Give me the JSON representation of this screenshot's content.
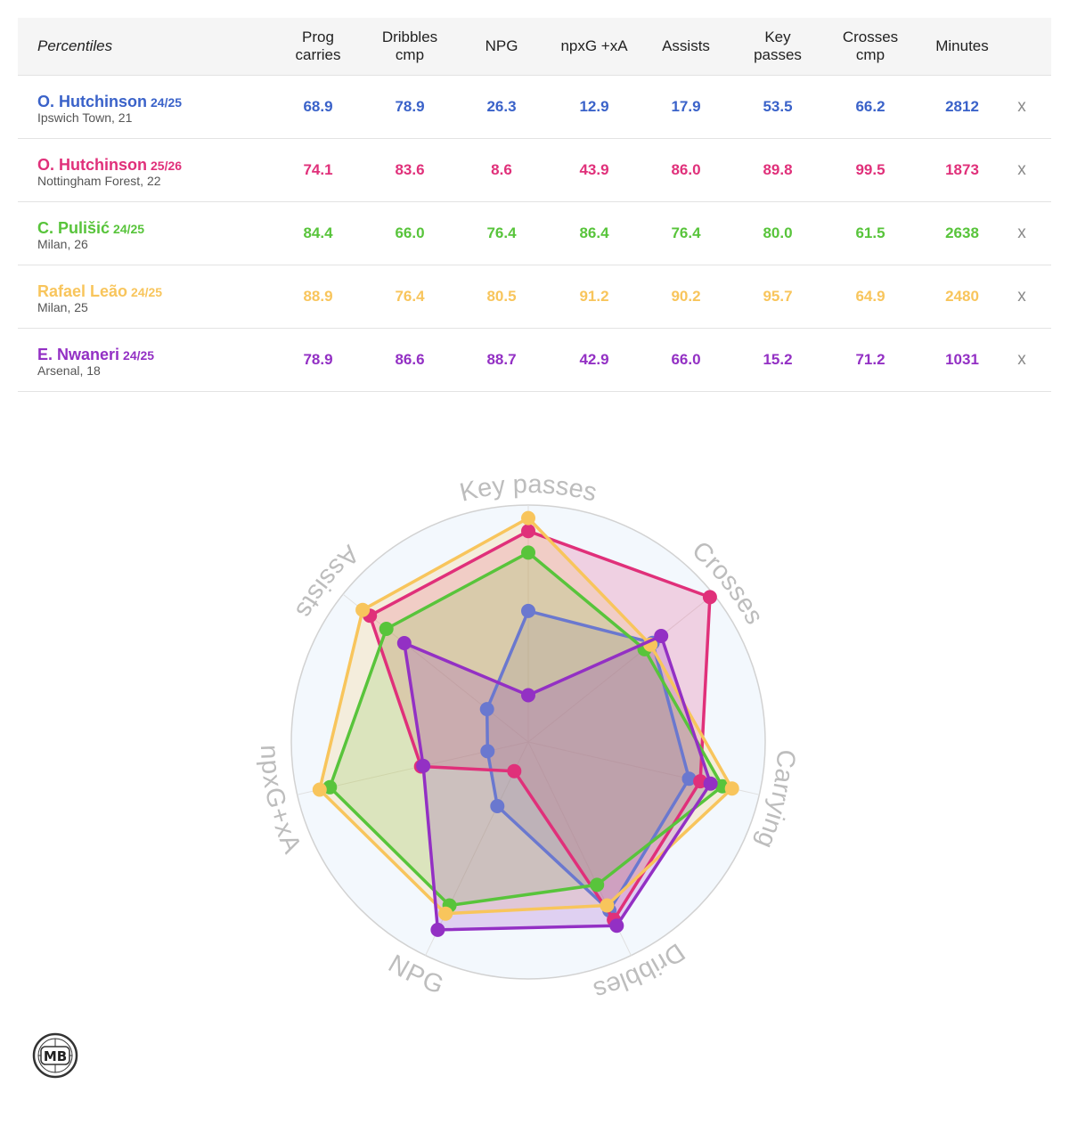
{
  "table": {
    "header_label": "Percentiles",
    "columns": [
      "Prog\ncarries",
      "Dribbles\ncmp",
      "NPG",
      "npxG +xA",
      "Assists",
      "Key\npasses",
      "Crosses\ncmp",
      "Minutes"
    ],
    "remove_label": "x",
    "players": [
      {
        "name": "O. Hutchinson",
        "season": "24/25",
        "sub": "Ipswich Town, 21",
        "color": "#3a62c9",
        "values": [
          "68.9",
          "78.9",
          "26.3",
          "12.9",
          "17.9",
          "53.5",
          "66.2",
          "2812"
        ]
      },
      {
        "name": "O. Hutchinson",
        "season": "25/26",
        "sub": "Nottingham Forest, 22",
        "color": "#e0307a",
        "values": [
          "74.1",
          "83.6",
          "8.6",
          "43.9",
          "86.0",
          "89.8",
          "99.5",
          "1873"
        ]
      },
      {
        "name": "C. Pulišić",
        "season": "24/25",
        "sub": "Milan, 26",
        "color": "#58c43b",
        "values": [
          "84.4",
          "66.0",
          "76.4",
          "86.4",
          "76.4",
          "80.0",
          "61.5",
          "2638"
        ]
      },
      {
        "name": "Rafael Leão",
        "season": "24/25",
        "sub": "Milan, 25",
        "color": "#f8c55c",
        "values": [
          "88.9",
          "76.4",
          "80.5",
          "91.2",
          "90.2",
          "95.7",
          "64.9",
          "2480"
        ]
      },
      {
        "name": "E. Nwaneri",
        "season": "24/25",
        "sub": "Arsenal, 18",
        "color": "#9330c4",
        "values": [
          "78.9",
          "86.6",
          "88.7",
          "42.9",
          "66.0",
          "15.2",
          "71.2",
          "1031"
        ]
      }
    ]
  },
  "chart_data": {
    "type": "radar",
    "axes": [
      "Key passes",
      "Crosses",
      "Carrying",
      "Dribbles",
      "NPG",
      "npxG+xA",
      "Assists"
    ],
    "range": [
      0,
      100
    ],
    "series": [
      {
        "name": "O. Hutchinson 24/25",
        "color": "#6a78cf",
        "values": [
          53.5,
          66.2,
          68.9,
          78.9,
          26.3,
          12.9,
          17.9
        ]
      },
      {
        "name": "O. Hutchinson 25/26",
        "color": "#e0307a",
        "values": [
          89.8,
          99.5,
          74.1,
          83.6,
          8.6,
          43.9,
          86.0
        ]
      },
      {
        "name": "C. Pulišić 24/25",
        "color": "#58c43b",
        "values": [
          80.0,
          61.5,
          84.4,
          66.0,
          76.4,
          86.4,
          76.4
        ]
      },
      {
        "name": "Rafael Leão 24/25",
        "color": "#f8c55c",
        "values": [
          95.7,
          64.9,
          88.9,
          76.4,
          80.5,
          91.2,
          90.2
        ]
      },
      {
        "name": "E. Nwaneri 24/25",
        "color": "#9330c4",
        "values": [
          15.2,
          71.2,
          78.9,
          86.6,
          88.7,
          42.9,
          66.0
        ]
      }
    ]
  },
  "logo": {
    "text": "MB"
  }
}
